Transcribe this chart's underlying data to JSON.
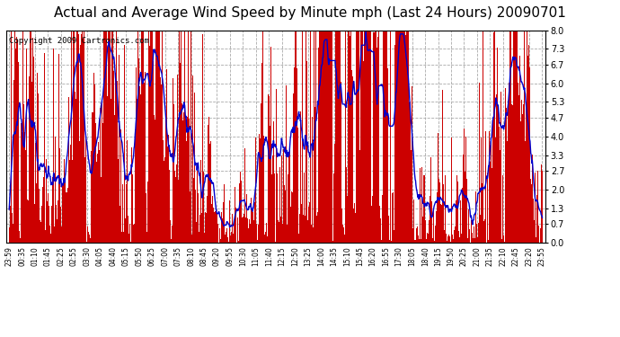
{
  "title": "Actual and Average Wind Speed by Minute mph (Last 24 Hours) 20090701",
  "copyright": "Copyright 2009 Cartronics.com",
  "yticks": [
    0.0,
    0.7,
    1.3,
    2.0,
    2.7,
    3.3,
    4.0,
    4.7,
    5.3,
    6.0,
    6.7,
    7.3,
    8.0
  ],
  "ylim": [
    0.0,
    8.0
  ],
  "bar_color": "#cc0000",
  "line_color": "#0000cc",
  "bg_color": "#ffffff",
  "grid_color": "#aaaaaa",
  "title_fontsize": 11,
  "copyright_fontsize": 6.5,
  "n_minutes": 1440,
  "avg_window": 30,
  "x_tick_labels": [
    "23:59",
    "00:35",
    "01:10",
    "01:45",
    "02:25",
    "02:55",
    "03:30",
    "04:05",
    "04:40",
    "05:15",
    "05:50",
    "06:25",
    "07:00",
    "07:35",
    "08:10",
    "08:45",
    "09:20",
    "09:55",
    "10:30",
    "11:05",
    "11:40",
    "12:15",
    "12:50",
    "13:25",
    "14:00",
    "14:35",
    "15:10",
    "15:45",
    "16:20",
    "16:55",
    "17:30",
    "18:05",
    "18:40",
    "19:15",
    "19:50",
    "20:25",
    "21:00",
    "21:35",
    "22:10",
    "22:45",
    "23:20",
    "23:55"
  ],
  "seed": 123
}
